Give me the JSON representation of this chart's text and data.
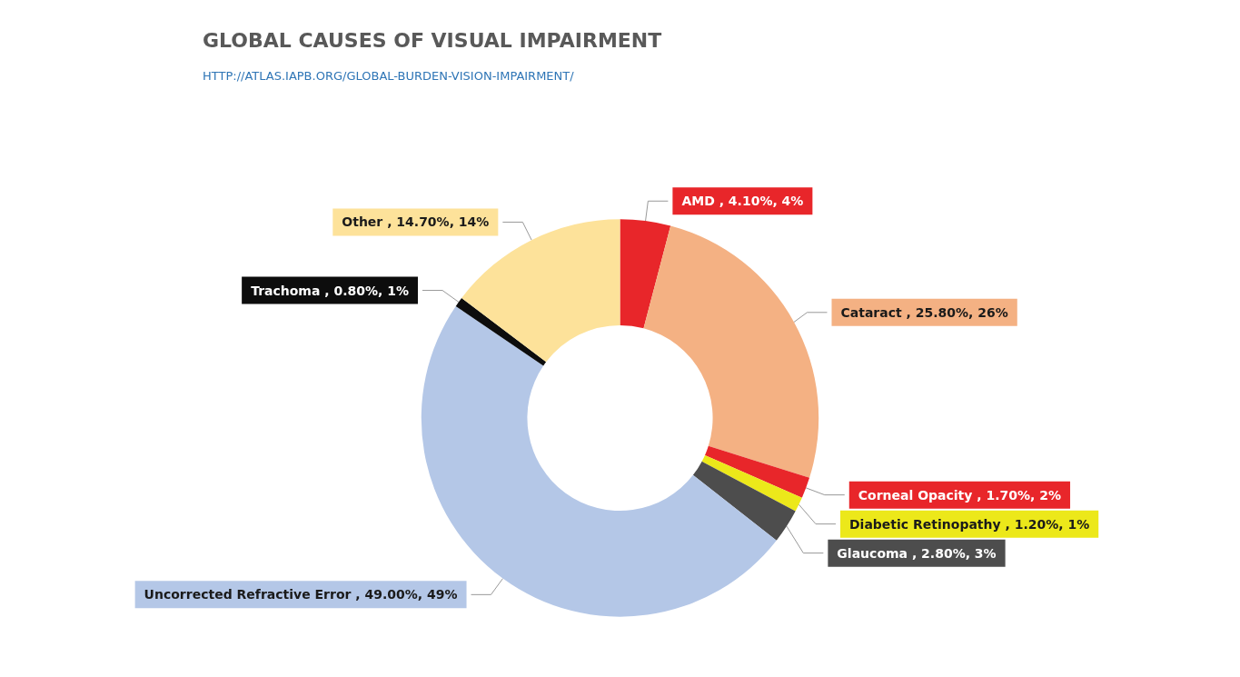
{
  "chart_data": {
    "type": "donut",
    "title": "GLOBAL CAUSES OF VISUAL IMPAIRMENT",
    "subtitle": "HTTP://ATLAS.IAPB.ORG/GLOBAL-BURDEN-VISION-IMPAIRMENT/",
    "categories": [
      "AMD",
      "Cataract",
      "Corneal Opacity",
      "Diabetic Retinopathy",
      "Glaucoma",
      "Uncorrected Refractive Error",
      "Trachoma",
      "Other"
    ],
    "values": [
      4.1,
      25.8,
      1.7,
      1.2,
      2.8,
      49.0,
      0.8,
      14.7
    ],
    "colors": [
      "#e8262a",
      "#f4b183",
      "#e8262a",
      "#ece81a",
      "#4d4d4d",
      "#b4c7e7",
      "#0d0d0d",
      "#fde29a"
    ],
    "value_labels": [
      ", 4.10%, 4%",
      ", 25.80%, 26%",
      ", 1.70%, 2%",
      ", 1.20%, 1%",
      ", 2.80%, 3%",
      ", 49.00%, 49%",
      ", 0.80%, 1%",
      ", 14.70%, 14%"
    ],
    "legend": false
  }
}
